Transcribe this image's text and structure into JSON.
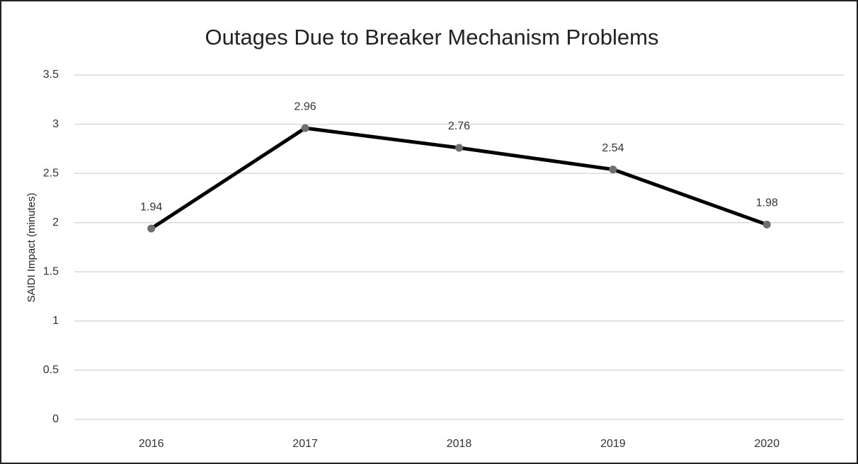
{
  "chart_data": {
    "type": "line",
    "title": "Outages Due to Breaker Mechanism Problems",
    "y_label": "SAIDI Impact (minutes)",
    "categories": [
      "2016",
      "2017",
      "2018",
      "2019",
      "2020"
    ],
    "values": [
      1.94,
      2.96,
      2.76,
      2.54,
      1.98
    ],
    "color": "#000000",
    "marker_color": "#6f6f6f",
    "ylim": [
      0,
      3.5
    ],
    "yticks": [
      0,
      0.5,
      1,
      1.5,
      2,
      2.5,
      3,
      3.5
    ],
    "grid": true,
    "data_labels": true
  }
}
